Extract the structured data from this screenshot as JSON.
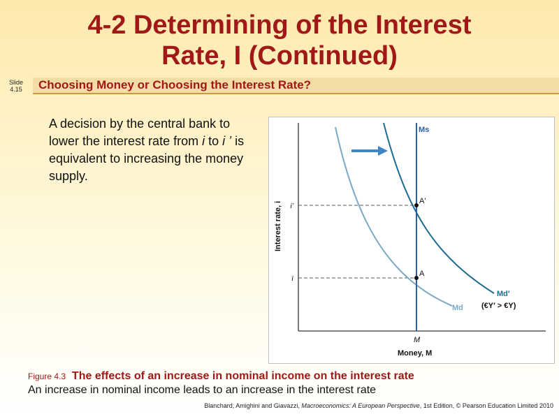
{
  "title": {
    "line1": "4-2  Determining of the Interest",
    "line2": "Rate, I (Continued)"
  },
  "slide_number": {
    "label": "Slide",
    "value": "4.15"
  },
  "subtitle": "Choosing Money or Choosing the Interest Rate?",
  "body": {
    "text_a": "A decision by the central bank to lower the interest rate from ",
    "i": "i",
    "text_b": " to ",
    "i_prime": "i ’",
    "text_c": " is equivalent to increasing the money supply."
  },
  "figure": {
    "y_axis_label": "Interest rate, i",
    "x_axis_label": "Money, M",
    "money_tick": "M",
    "rate_tick_low": "i",
    "rate_tick_high": "i′",
    "point_a": "A",
    "point_a_prime": "A′",
    "supply_label": "Ms",
    "demand_label": "Md",
    "demand_prime_label": "Md′",
    "demand_prime_note": "(€Y′ > €Y)",
    "colors": {
      "demand": "#7aa9c4",
      "demand_prime": "#1b6b8f",
      "supply": "#2d5ea8",
      "arrow": "#3f86c8"
    }
  },
  "caption": {
    "figure_number": "Figure 4.3",
    "figure_title": "The effects of an increase in nominal income on the interest rate",
    "description": "An increase in nominal income leads to an increase in the interest rate"
  },
  "footer": {
    "authors": "Blanchard, Amighini and Giavazzi, ",
    "book": "Macroeconomics: A European Perspective",
    "edition": ", 1st Edition, © Pearson Education Limited 2010"
  }
}
